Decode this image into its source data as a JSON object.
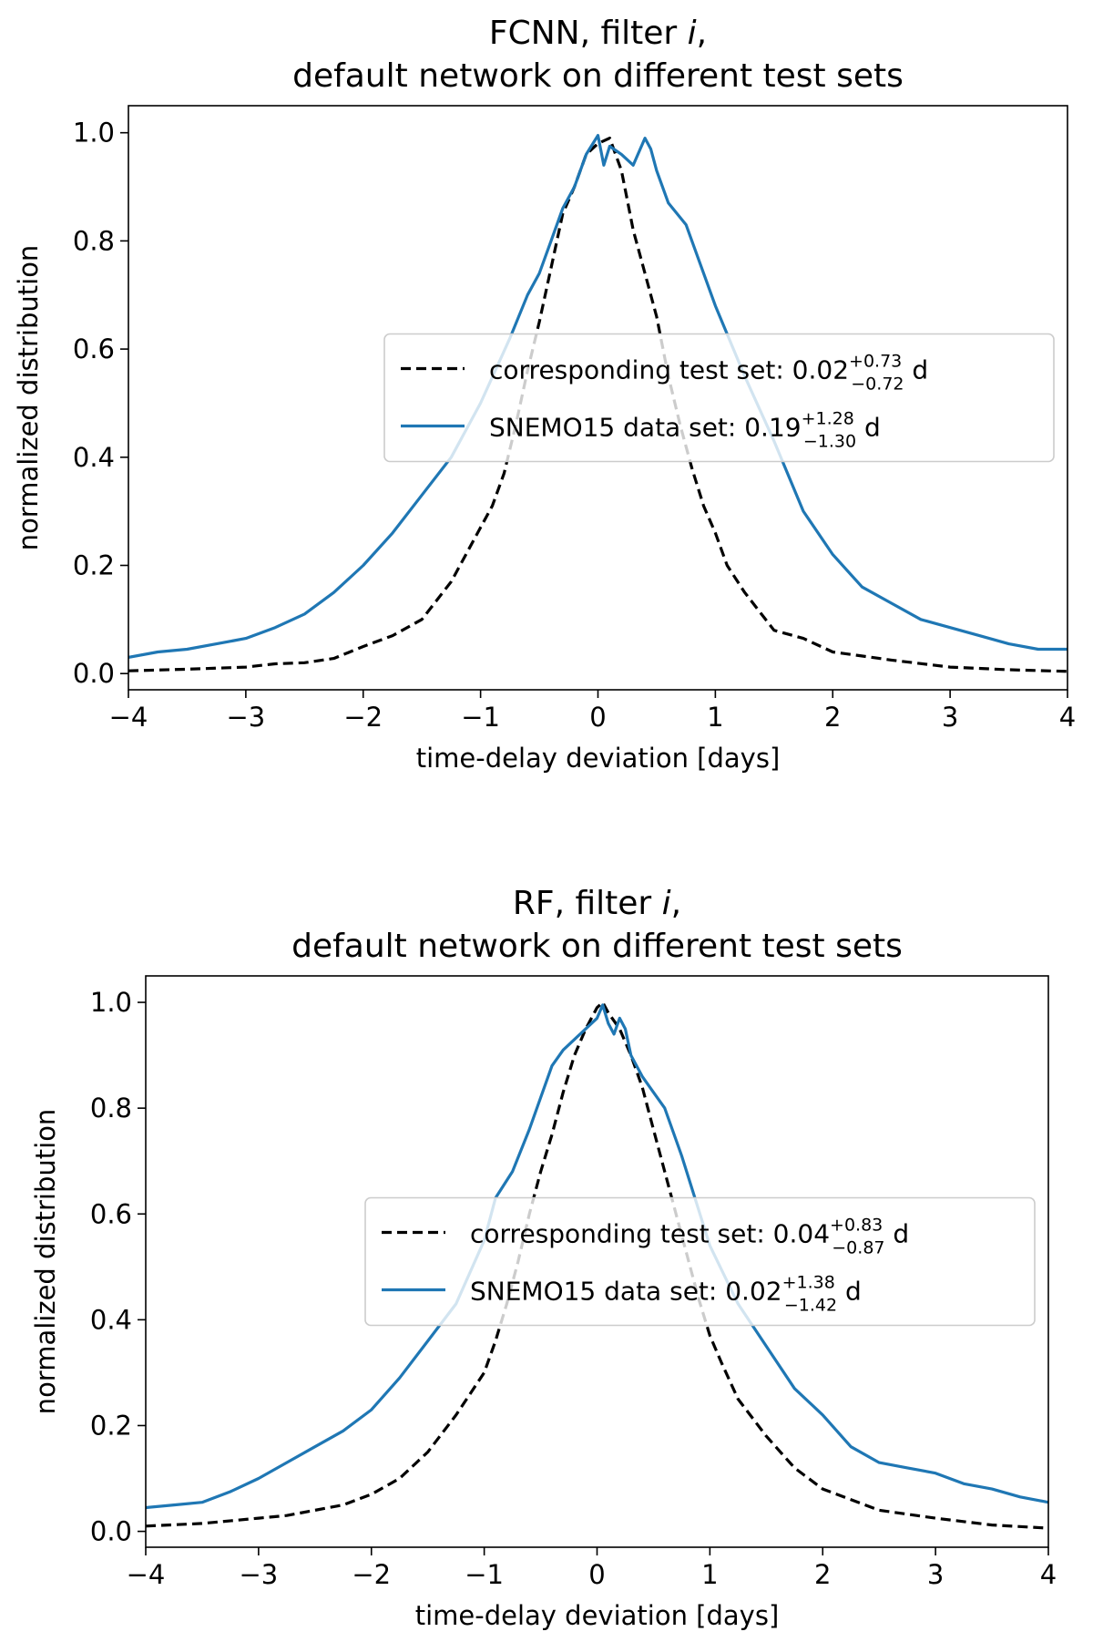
{
  "chart_data": [
    {
      "type": "line",
      "title_line1_prefix": "FCNN, filter ",
      "title_italic": "i",
      "title_line1_suffix": ",",
      "title_line2": "default network on different test sets",
      "xlabel": "time-delay deviation [days]",
      "ylabel": "normalized distribution",
      "xlim": [
        -4,
        4
      ],
      "ylim": [
        -0.03,
        1.05
      ],
      "xticks": [
        -4,
        -3,
        -2,
        -1,
        0,
        1,
        2,
        3,
        4
      ],
      "xtick_labels": [
        "−4",
        "−3",
        "−2",
        "−1",
        "0",
        "1",
        "2",
        "3",
        "4"
      ],
      "yticks": [
        0.0,
        0.2,
        0.4,
        0.6,
        0.8,
        1.0
      ],
      "ytick_labels": [
        "0.0",
        "0.2",
        "0.4",
        "0.6",
        "0.8",
        "1.0"
      ],
      "legend_position": "center-right",
      "series": [
        {
          "name": "corresponding test set",
          "legend_prefix": "corresponding test set: ",
          "legend_value": "0.02",
          "legend_sup": "+0.73",
          "legend_sub": "−0.72",
          "legend_unit": " d",
          "color": "#000000",
          "dash": true,
          "x": [
            -4.0,
            -3.5,
            -3.0,
            -2.75,
            -2.5,
            -2.25,
            -2.0,
            -1.75,
            -1.5,
            -1.25,
            -1.0,
            -0.9,
            -0.8,
            -0.7,
            -0.6,
            -0.5,
            -0.4,
            -0.3,
            -0.2,
            -0.1,
            0.0,
            0.1,
            0.2,
            0.3,
            0.4,
            0.5,
            0.6,
            0.7,
            0.8,
            0.9,
            1.0,
            1.1,
            1.25,
            1.5,
            1.75,
            2.0,
            2.5,
            3.0,
            3.5,
            4.0
          ],
          "y": [
            0.005,
            0.008,
            0.012,
            0.018,
            0.02,
            0.028,
            0.05,
            0.07,
            0.1,
            0.17,
            0.27,
            0.31,
            0.37,
            0.46,
            0.56,
            0.65,
            0.75,
            0.85,
            0.9,
            0.96,
            0.98,
            0.99,
            0.93,
            0.82,
            0.74,
            0.66,
            0.55,
            0.46,
            0.38,
            0.31,
            0.26,
            0.2,
            0.15,
            0.08,
            0.065,
            0.04,
            0.025,
            0.012,
            0.007,
            0.004
          ]
        },
        {
          "name": "SNEMO15 data set",
          "legend_prefix": "SNEMO15 data set: ",
          "legend_value": "0.19",
          "legend_sup": "+1.28",
          "legend_sub": "−1.30",
          "legend_unit": " d",
          "color": "#1f77b4",
          "dash": false,
          "x": [
            -4.0,
            -3.75,
            -3.5,
            -3.25,
            -3.0,
            -2.75,
            -2.5,
            -2.25,
            -2.0,
            -1.75,
            -1.5,
            -1.25,
            -1.0,
            -0.75,
            -0.6,
            -0.5,
            -0.4,
            -0.3,
            -0.2,
            -0.1,
            0.0,
            0.05,
            0.1,
            0.2,
            0.3,
            0.4,
            0.45,
            0.5,
            0.6,
            0.75,
            1.0,
            1.25,
            1.5,
            1.75,
            2.0,
            2.25,
            2.5,
            2.75,
            3.0,
            3.25,
            3.5,
            3.75,
            4.0
          ],
          "y": [
            0.03,
            0.04,
            0.045,
            0.055,
            0.065,
            0.085,
            0.11,
            0.15,
            0.2,
            0.26,
            0.33,
            0.4,
            0.5,
            0.62,
            0.7,
            0.74,
            0.8,
            0.86,
            0.9,
            0.96,
            0.995,
            0.94,
            0.975,
            0.96,
            0.94,
            0.99,
            0.97,
            0.93,
            0.87,
            0.83,
            0.68,
            0.55,
            0.43,
            0.3,
            0.22,
            0.16,
            0.13,
            0.1,
            0.085,
            0.07,
            0.055,
            0.045,
            0.045
          ]
        }
      ]
    },
    {
      "type": "line",
      "title_line1_prefix": "RF, filter ",
      "title_italic": "i",
      "title_line1_suffix": ",",
      "title_line2": "default network on different test sets",
      "xlabel": "time-delay deviation [days]",
      "ylabel": "normalized distribution",
      "xlim": [
        -4,
        4
      ],
      "ylim": [
        -0.03,
        1.05
      ],
      "xticks": [
        -4,
        -3,
        -2,
        -1,
        0,
        1,
        2,
        3,
        4
      ],
      "xtick_labels": [
        "−4",
        "−3",
        "−2",
        "−1",
        "0",
        "1",
        "2",
        "3",
        "4"
      ],
      "yticks": [
        0.0,
        0.2,
        0.4,
        0.6,
        0.8,
        1.0
      ],
      "ytick_labels": [
        "0.0",
        "0.2",
        "0.4",
        "0.6",
        "0.8",
        "1.0"
      ],
      "legend_position": "center-right",
      "series": [
        {
          "name": "corresponding test set",
          "legend_prefix": "corresponding test set: ",
          "legend_value": "0.04",
          "legend_sup": "+0.83",
          "legend_sub": "−0.87",
          "legend_unit": " d",
          "color": "#000000",
          "dash": true,
          "x": [
            -4.0,
            -3.5,
            -3.0,
            -2.75,
            -2.5,
            -2.25,
            -2.0,
            -1.75,
            -1.5,
            -1.25,
            -1.0,
            -0.9,
            -0.8,
            -0.7,
            -0.6,
            -0.5,
            -0.4,
            -0.3,
            -0.2,
            -0.1,
            0.0,
            0.05,
            0.1,
            0.2,
            0.3,
            0.4,
            0.5,
            0.6,
            0.7,
            0.8,
            0.9,
            1.0,
            1.1,
            1.25,
            1.5,
            1.75,
            2.0,
            2.5,
            3.0,
            3.5,
            4.0
          ],
          "y": [
            0.01,
            0.015,
            0.025,
            0.03,
            0.04,
            0.05,
            0.07,
            0.1,
            0.15,
            0.22,
            0.3,
            0.36,
            0.43,
            0.51,
            0.6,
            0.68,
            0.75,
            0.83,
            0.9,
            0.95,
            0.99,
            1.0,
            0.98,
            0.95,
            0.9,
            0.84,
            0.76,
            0.68,
            0.6,
            0.52,
            0.44,
            0.37,
            0.32,
            0.25,
            0.18,
            0.12,
            0.08,
            0.04,
            0.025,
            0.012,
            0.006
          ]
        },
        {
          "name": "SNEMO15 data set",
          "legend_prefix": "SNEMO15 data set: ",
          "legend_value": "0.02",
          "legend_sup": "+1.38",
          "legend_sub": "−1.42",
          "legend_unit": " d",
          "color": "#1f77b4",
          "dash": false,
          "x": [
            -4.0,
            -3.75,
            -3.5,
            -3.25,
            -3.0,
            -2.75,
            -2.5,
            -2.25,
            -2.0,
            -1.75,
            -1.5,
            -1.25,
            -1.0,
            -0.9,
            -0.75,
            -0.6,
            -0.5,
            -0.4,
            -0.3,
            -0.2,
            -0.1,
            0.0,
            0.05,
            0.1,
            0.15,
            0.2,
            0.25,
            0.3,
            0.4,
            0.5,
            0.6,
            0.75,
            1.0,
            1.25,
            1.5,
            1.75,
            2.0,
            2.25,
            2.5,
            2.75,
            3.0,
            3.25,
            3.5,
            3.75,
            4.0
          ],
          "y": [
            0.045,
            0.05,
            0.055,
            0.075,
            0.1,
            0.13,
            0.16,
            0.19,
            0.23,
            0.29,
            0.36,
            0.43,
            0.55,
            0.63,
            0.68,
            0.76,
            0.82,
            0.88,
            0.91,
            0.93,
            0.95,
            0.97,
            0.995,
            0.96,
            0.94,
            0.97,
            0.95,
            0.9,
            0.86,
            0.83,
            0.8,
            0.71,
            0.54,
            0.43,
            0.35,
            0.27,
            0.22,
            0.16,
            0.13,
            0.12,
            0.11,
            0.09,
            0.08,
            0.065,
            0.055
          ]
        }
      ]
    }
  ]
}
